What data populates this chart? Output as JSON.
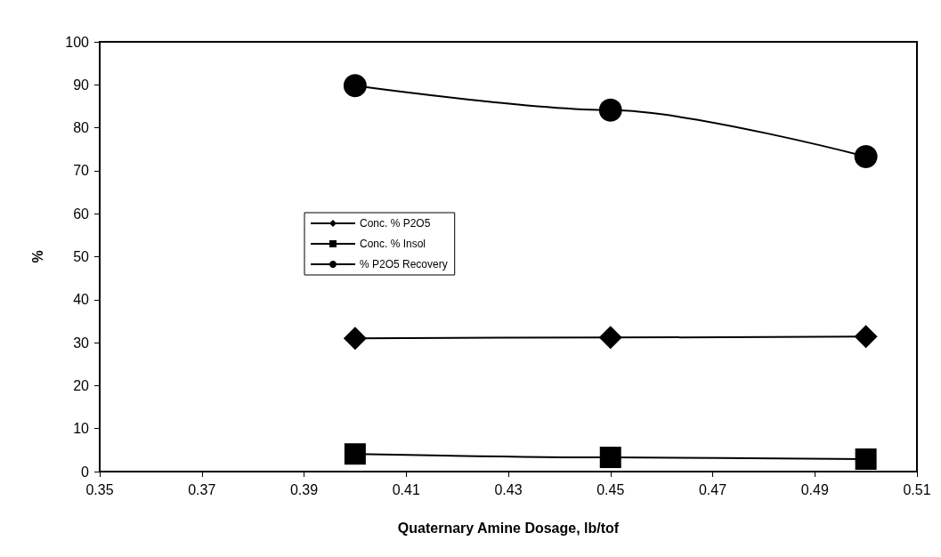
{
  "chart_data": {
    "type": "line",
    "xlabel": "Quaternary Amine Dosage, lb/tof",
    "ylabel": "%",
    "x": [
      0.4,
      0.45,
      0.5
    ],
    "series": [
      {
        "name": "Conc. % P2O5",
        "color": "#000000",
        "marker": "diamond",
        "values": [
          31.0,
          31.2,
          31.4
        ]
      },
      {
        "name": "Conc. % Insol",
        "color": "#000000",
        "marker": "square",
        "values": [
          4.1,
          3.3,
          2.9
        ]
      },
      {
        "name": "% P2O5 Recovery",
        "color": "#000000",
        "marker": "circle",
        "values": [
          89.8,
          84.1,
          73.3
        ]
      }
    ],
    "xlim": [
      0.35,
      0.51
    ],
    "xticks": [
      0.35,
      0.37,
      0.39,
      0.41,
      0.43,
      0.45,
      0.47,
      0.49,
      0.51
    ],
    "ylim": [
      0,
      100
    ],
    "yticks": [
      0,
      10,
      20,
      30,
      40,
      50,
      60,
      70,
      80,
      90,
      100
    ],
    "legend": "left",
    "grid": false,
    "line_style": "solid"
  }
}
